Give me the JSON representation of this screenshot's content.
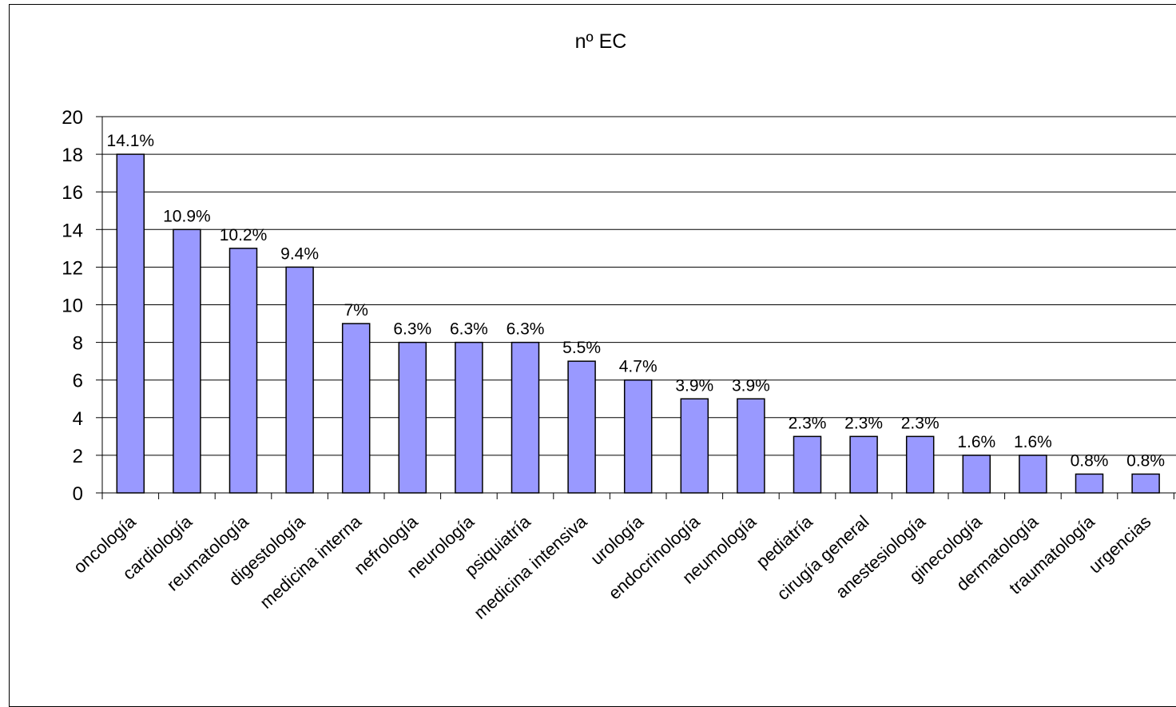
{
  "chart_data": {
    "type": "bar",
    "title": "nº EC",
    "xlabel": "",
    "ylabel": "",
    "ylim": [
      0,
      20
    ],
    "yticks": [
      0,
      2,
      4,
      6,
      8,
      10,
      12,
      14,
      16,
      18,
      20
    ],
    "ytick_labels": [
      "0",
      "2",
      "4",
      "6",
      "8",
      "10",
      "12",
      "14",
      "16",
      "18",
      "20"
    ],
    "grid": true,
    "legend": "none",
    "bar_color": "#9999ff",
    "categories": [
      "oncología",
      "cardiología",
      "reumatología",
      "digestología",
      "medicina interna",
      "nefrología",
      "neurología",
      "psiquiatría",
      "medicina intensiva",
      "urología",
      "endocrinología",
      "neumología",
      "pediatría",
      "cirugía general",
      "anestesiología",
      "ginecología",
      "dermatología",
      "traumatología",
      "urgencias"
    ],
    "values": [
      18,
      14,
      13,
      12,
      9,
      8,
      8,
      8,
      7,
      6,
      5,
      5,
      3,
      3,
      3,
      2,
      2,
      1,
      1
    ],
    "data_labels": [
      "14.1%",
      "10.9%",
      "10.2%",
      "9.4%",
      "7%",
      "6.3%",
      "6.3%",
      "6.3%",
      "5.5%",
      "4.7%",
      "3.9%",
      "3.9%",
      "2.3%",
      "2.3%",
      "2.3%",
      "1.6%",
      "1.6%",
      "0.8%",
      "0.8%"
    ]
  }
}
